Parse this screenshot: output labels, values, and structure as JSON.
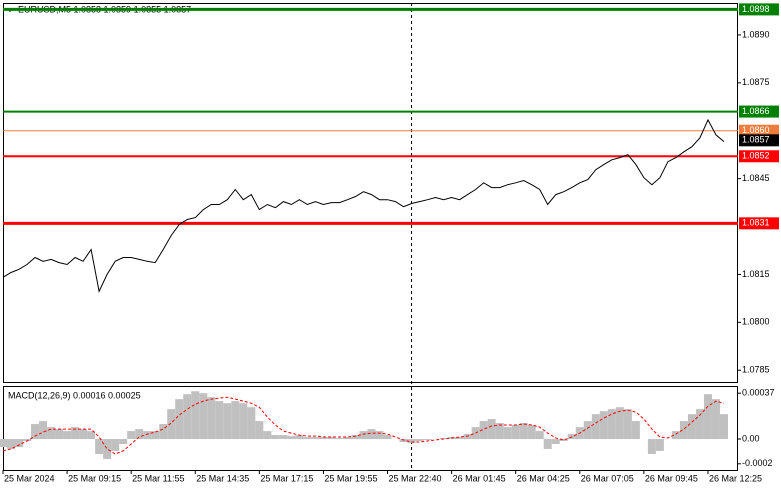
{
  "chart_data": [
    {
      "type": "line",
      "title": "EURUSD,M5  1.0858 1.0859 1.0855 1.0857",
      "color": "#000000",
      "x": [
        0,
        4,
        8,
        12,
        16,
        20,
        24,
        28,
        32,
        36,
        40,
        44,
        48,
        52,
        56,
        60,
        64,
        68,
        72,
        76,
        80,
        84,
        88,
        92,
        96,
        100,
        104,
        108,
        112,
        116,
        120,
        124,
        128,
        132,
        136,
        140,
        144,
        148,
        152,
        156,
        160,
        164,
        168,
        172,
        176,
        180,
        184,
        188,
        192,
        196,
        200,
        204,
        208,
        212,
        216,
        220,
        224,
        228,
        232,
        236,
        240,
        244,
        248,
        252,
        256,
        260,
        264,
        268,
        272,
        276,
        280,
        284,
        288,
        292,
        296,
        300,
        304,
        308,
        312,
        316,
        320,
        324,
        328,
        332,
        336,
        340,
        344,
        348,
        352,
        356,
        360
      ],
      "values": [
        1.08141,
        1.08156,
        1.08166,
        1.08181,
        1.08203,
        1.08191,
        1.08197,
        1.08187,
        1.08181,
        1.08203,
        1.08191,
        1.08228,
        1.08097,
        1.0815,
        1.08191,
        1.08203,
        1.08203,
        1.08197,
        1.08191,
        1.08187,
        1.08228,
        1.08272,
        1.08306,
        1.08322,
        1.08328,
        1.08353,
        1.08369,
        1.08369,
        1.08384,
        1.08416,
        1.08384,
        1.084,
        1.08353,
        1.08369,
        1.08359,
        1.08378,
        1.08369,
        1.08384,
        1.08369,
        1.08378,
        1.08369,
        1.08375,
        1.08375,
        1.08384,
        1.08394,
        1.08409,
        1.084,
        1.08384,
        1.08384,
        1.08378,
        1.08362,
        1.08372,
        1.08378,
        1.08384,
        1.08391,
        1.08384,
        1.08391,
        1.08384,
        1.084,
        1.08416,
        1.08437,
        1.08422,
        1.08422,
        1.08431,
        1.08437,
        1.08444,
        1.08431,
        1.08416,
        1.08369,
        1.084,
        1.08409,
        1.08422,
        1.08437,
        1.08447,
        1.08478,
        1.08494,
        1.08509,
        1.08516,
        1.08525,
        1.08494,
        1.08453,
        1.08431,
        1.08453,
        1.08503,
        1.08516,
        1.08534,
        1.0855,
        1.08578,
        1.08634,
        1.08587,
        1.08566
      ],
      "xlim": [
        0,
        367
      ],
      "xticks": [
        {
          "value": 0,
          "label": "25 Mar 2024"
        },
        {
          "value": 32,
          "label": "25 Mar 09:15"
        },
        {
          "value": 64,
          "label": "25 Mar 11:55"
        },
        {
          "value": 96,
          "label": "25 Mar 14:35"
        },
        {
          "value": 128,
          "label": "25 Mar 17:15"
        },
        {
          "value": 160,
          "label": "25 Mar 19:55"
        },
        {
          "value": 192,
          "label": "25 Mar 22:40"
        },
        {
          "value": 224,
          "label": "26 Mar 01:45"
        },
        {
          "value": 256,
          "label": "26 Mar 04:25"
        },
        {
          "value": 288,
          "label": "26 Mar 07:05"
        },
        {
          "value": 320,
          "label": "26 Mar 09:45"
        },
        {
          "value": 352,
          "label": "26 Mar 12:25"
        }
      ],
      "ylim": [
        1.0781,
        1.09
      ],
      "yticks": [
        {
          "value": 1.089,
          "label": "1.0890"
        },
        {
          "value": 1.0875,
          "label": "1.0875"
        },
        {
          "value": 1.0845,
          "label": "1.0845"
        },
        {
          "value": 1.0815,
          "label": "1.0815"
        },
        {
          "value": 1.08,
          "label": "1.0800"
        },
        {
          "value": 1.0785,
          "label": "1.0785"
        }
      ],
      "separator_x": 204,
      "levels": [
        {
          "value": 1.0898,
          "label": "1.0898",
          "color": "#008000",
          "style": "thick"
        },
        {
          "value": 1.0866,
          "label": "1.0866",
          "color": "#008000",
          "style": "normal"
        },
        {
          "value": 1.086,
          "label": "1.0860",
          "color": "#f07c3c",
          "style": "thin"
        },
        {
          "value": 1.0857,
          "label": "1.0857",
          "color": "#000000",
          "style": "label"
        },
        {
          "value": 1.0852,
          "label": "1.0852",
          "color": "#ff0000",
          "style": "normal"
        },
        {
          "value": 1.0831,
          "label": "1.0831",
          "color": "#ff0000",
          "style": "thick"
        }
      ]
    },
    {
      "type": "macd",
      "title": "MACD(12,26,9) 0.00016 0.00025",
      "x": [
        0,
        4,
        8,
        12,
        16,
        20,
        24,
        28,
        32,
        36,
        40,
        44,
        48,
        52,
        56,
        60,
        64,
        68,
        72,
        76,
        80,
        84,
        88,
        92,
        96,
        100,
        104,
        108,
        112,
        116,
        120,
        124,
        128,
        132,
        136,
        140,
        144,
        148,
        152,
        156,
        160,
        164,
        168,
        172,
        176,
        180,
        184,
        188,
        192,
        196,
        200,
        204,
        208,
        212,
        216,
        220,
        224,
        228,
        232,
        236,
        240,
        244,
        248,
        252,
        256,
        260,
        264,
        268,
        272,
        276,
        280,
        284,
        288,
        292,
        296,
        300,
        304,
        308,
        312,
        316,
        320,
        324,
        328,
        332,
        336,
        340,
        344,
        348,
        352,
        356,
        360
      ],
      "xlim": [
        0,
        367
      ],
      "ylim": [
        -0.00025,
        0.00042
      ],
      "yticks": [
        0.00037,
        {
          "value": 0,
          "label": "0.00"
        },
        -0.0002
      ],
      "series": [
        {
          "style": "histogram",
          "color": "#c0c0c0",
          "values": [
            -6.4e-05,
            -8e-05,
            -6.4e-05,
            -1.6e-05,
            0.000121,
            0.000145,
            9.6e-05,
            8e-05,
            6.4e-05,
            9.6e-05,
            8e-05,
            6.4e-05,
            -0.000121,
            -0.000161,
            -9.6e-05,
            -4e-05,
            6.4e-05,
            8e-05,
            6.4e-05,
            6.4e-05,
            0.000121,
            0.000241,
            0.000322,
            0.000362,
            0.000386,
            0.00037,
            0.000338,
            0.000306,
            0.000289,
            0.000306,
            0.000289,
            0.000257,
            0.000145,
            6.4e-05,
            3.2e-05,
            3.2e-05,
            2.4e-05,
            3.2e-05,
            1.6e-05,
            1.6e-05,
            1.6e-05,
            1.6e-05,
            8e-06,
            1.6e-05,
            3.2e-05,
            6.4e-05,
            8e-05,
            6.4e-05,
            3.2e-05,
            0,
            -2.4e-05,
            -3.2e-05,
            -1.6e-05,
            -8e-06,
            0,
            8e-06,
            1.6e-05,
            1.6e-05,
            4e-05,
            9.6e-05,
            0.000145,
            0.000161,
            0.000129,
            9.6e-05,
            0.000113,
            0.000129,
            0.000113,
            6.4e-05,
            -8e-05,
            -4e-05,
            -1.6e-05,
            4e-05,
            9.6e-05,
            0.000145,
            0.000201,
            0.000225,
            0.000241,
            0.000257,
            0.000241,
            0.000145,
            0,
            -0.000121,
            -9.6e-05,
            0,
            6.4e-05,
            0.000145,
            0.000201,
            0.000241,
            0.000362,
            0.000322,
            0.000201
          ]
        },
        {
          "style": "dashed",
          "color": "#ff0000",
          "values": [
            -9.6e-05,
            -8e-05,
            -4.8e-05,
            -1.6e-05,
            2.4e-05,
            5.6e-05,
            8e-05,
            8e-05,
            8e-05,
            8e-05,
            8e-05,
            8e-05,
            1.6e-05,
            -8e-05,
            -0.000121,
            -9.6e-05,
            -4e-05,
            1.6e-05,
            4e-05,
            5.6e-05,
            8e-05,
            0.000129,
            0.000193,
            0.000241,
            0.000281,
            0.000306,
            0.000322,
            0.00033,
            0.000338,
            0.000322,
            0.000306,
            0.000289,
            0.000257,
            0.000177,
            0.000113,
            6.4e-05,
            4.8e-05,
            3.2e-05,
            2.4e-05,
            2.4e-05,
            1.6e-05,
            1.6e-05,
            1.6e-05,
            1.6e-05,
            2.4e-05,
            4e-05,
            4.8e-05,
            4.8e-05,
            4e-05,
            1.6e-05,
            -8e-06,
            -2.4e-05,
            -2.4e-05,
            -1.6e-05,
            -8e-06,
            0,
            8e-06,
            1.6e-05,
            2.4e-05,
            4.8e-05,
            8e-05,
            0.000105,
            0.000113,
            0.000113,
            0.000113,
            0.000121,
            0.000113,
            9.6e-05,
            4.8e-05,
            8e-06,
            -8e-06,
            1.6e-05,
            4.8e-05,
            8.8e-05,
            0.000129,
            0.000169,
            0.000201,
            0.000225,
            0.000233,
            0.000217,
            0.000161,
            8e-05,
            1.6e-05,
            8e-06,
            4e-05,
            8e-05,
            0.000137,
            0.000193,
            0.000265,
            0.000305,
            0.000289
          ]
        }
      ]
    }
  ]
}
